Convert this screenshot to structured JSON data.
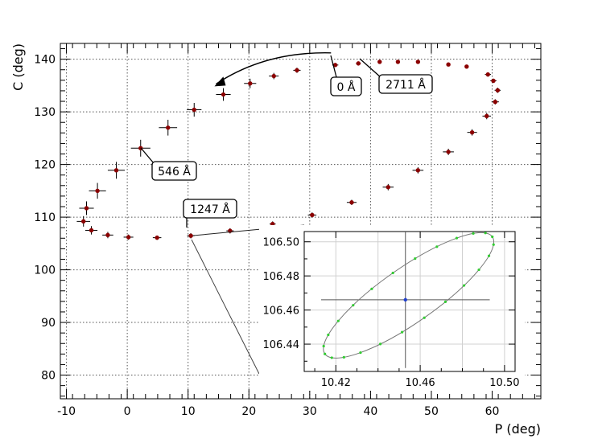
{
  "chart_data": [
    {
      "type": "scatter",
      "xlabel": "P (deg)",
      "ylabel": "C (deg)",
      "xlim": [
        -11,
        68
      ],
      "ylim": [
        75.5,
        143
      ],
      "xticks": [
        -10,
        0,
        10,
        20,
        30,
        40,
        50,
        60
      ],
      "yticks": [
        80,
        90,
        100,
        110,
        120,
        130,
        140
      ],
      "grid": true,
      "marker_color": "#8b0000",
      "points": [
        {
          "x": 34.2,
          "y": 138.9,
          "xerr": 0.5,
          "yerr": 0.3
        },
        {
          "x": 38.0,
          "y": 139.2,
          "xerr": 0.4,
          "yerr": 0.3
        },
        {
          "x": 41.5,
          "y": 139.5,
          "xerr": 0.3,
          "yerr": 0.3
        },
        {
          "x": 44.5,
          "y": 139.5,
          "xerr": 0.3,
          "yerr": 0.3
        },
        {
          "x": 47.8,
          "y": 139.5,
          "xerr": 0.3,
          "yerr": 0.3
        },
        {
          "x": 52.8,
          "y": 139.0,
          "xerr": 0.3,
          "yerr": 0.3
        },
        {
          "x": 55.8,
          "y": 138.6,
          "xerr": 0.3,
          "yerr": 0.3
        },
        {
          "x": 59.3,
          "y": 137.1,
          "xerr": 0.5,
          "yerr": 0.4
        },
        {
          "x": 60.2,
          "y": 135.9,
          "xerr": 0.5,
          "yerr": 0.4
        },
        {
          "x": 60.9,
          "y": 134.1,
          "xerr": 0.5,
          "yerr": 0.5
        },
        {
          "x": 60.5,
          "y": 131.9,
          "xerr": 0.6,
          "yerr": 0.5
        },
        {
          "x": 59.1,
          "y": 129.2,
          "xerr": 0.7,
          "yerr": 0.6
        },
        {
          "x": 56.7,
          "y": 126.1,
          "xerr": 0.8,
          "yerr": 0.6
        },
        {
          "x": 52.8,
          "y": 122.4,
          "xerr": 0.9,
          "yerr": 0.6
        },
        {
          "x": 47.8,
          "y": 118.9,
          "xerr": 0.9,
          "yerr": 0.6
        },
        {
          "x": 42.9,
          "y": 115.7,
          "xerr": 0.9,
          "yerr": 0.6
        },
        {
          "x": 36.9,
          "y": 112.8,
          "xerr": 0.8,
          "yerr": 0.5
        },
        {
          "x": 30.4,
          "y": 110.4,
          "xerr": 0.7,
          "yerr": 0.5
        },
        {
          "x": 23.9,
          "y": 108.7,
          "xerr": 0.5,
          "yerr": 0.5
        },
        {
          "x": 16.9,
          "y": 107.4,
          "xerr": 0.6,
          "yerr": 0.5
        },
        {
          "x": 10.45,
          "y": 106.47,
          "xerr": 0.6,
          "yerr": 0.5
        },
        {
          "x": 4.9,
          "y": 106.1,
          "xerr": 0.7,
          "yerr": 0.4
        },
        {
          "x": 0.2,
          "y": 106.2,
          "xerr": 0.8,
          "yerr": 0.5
        },
        {
          "x": -3.2,
          "y": 106.6,
          "xerr": 0.9,
          "yerr": 0.6
        },
        {
          "x": -5.9,
          "y": 107.5,
          "xerr": 1.0,
          "yerr": 0.8
        },
        {
          "x": -7.2,
          "y": 109.2,
          "xerr": 1.1,
          "yerr": 1.0
        },
        {
          "x": -6.7,
          "y": 111.7,
          "xerr": 1.2,
          "yerr": 1.3
        },
        {
          "x": -4.9,
          "y": 115.0,
          "xerr": 1.4,
          "yerr": 1.5
        },
        {
          "x": -1.8,
          "y": 118.9,
          "xerr": 1.4,
          "yerr": 1.6
        },
        {
          "x": 2.2,
          "y": 123.1,
          "xerr": 1.6,
          "yerr": 1.6
        },
        {
          "x": 6.7,
          "y": 127.0,
          "xerr": 1.5,
          "yerr": 1.5
        },
        {
          "x": 11.0,
          "y": 130.4,
          "xerr": 1.2,
          "yerr": 1.3
        },
        {
          "x": 15.8,
          "y": 133.3,
          "xerr": 1.2,
          "yerr": 1.2
        },
        {
          "x": 20.2,
          "y": 135.4,
          "xerr": 1.0,
          "yerr": 0.9
        },
        {
          "x": 24.1,
          "y": 136.8,
          "xerr": 0.8,
          "yerr": 0.6
        },
        {
          "x": 27.9,
          "y": 137.9,
          "xerr": 0.6,
          "yerr": 0.5
        }
      ],
      "annotations": [
        {
          "label": "0 Å",
          "x": 34.2,
          "y": 138.9
        },
        {
          "label": "2711 Å",
          "x": 38.0,
          "y": 139.2
        },
        {
          "label": "546 Å",
          "x": 2.2,
          "y": 123.1
        },
        {
          "label": "1247 Å",
          "x": 10.45,
          "y": 106.47
        }
      ],
      "arrow": {
        "from": [
          33.5,
          141.2
        ],
        "to": [
          14.6,
          135.3
        ]
      }
    },
    {
      "type": "scatter",
      "xlim": [
        10.405,
        10.505
      ],
      "ylim": [
        106.424,
        106.506
      ],
      "xticks": [
        10.42,
        10.46,
        10.5
      ],
      "xtick_labels": [
        "10.42",
        "10.46",
        "10.50"
      ],
      "yticks": [
        106.44,
        106.46,
        106.48,
        106.5
      ],
      "ytick_labels": [
        "106.44",
        "106.46",
        "106.48",
        "106.50"
      ],
      "grid": true,
      "center": {
        "x": 10.453,
        "y": 106.466,
        "xerr": 0.04,
        "yerr": 0.04
      },
      "center_color": "#1f3fd0",
      "sample_color": "#33cc33",
      "ellipse": {
        "cx": 10.4545,
        "cy": 106.4686,
        "angle_deg": 35
      }
    }
  ]
}
